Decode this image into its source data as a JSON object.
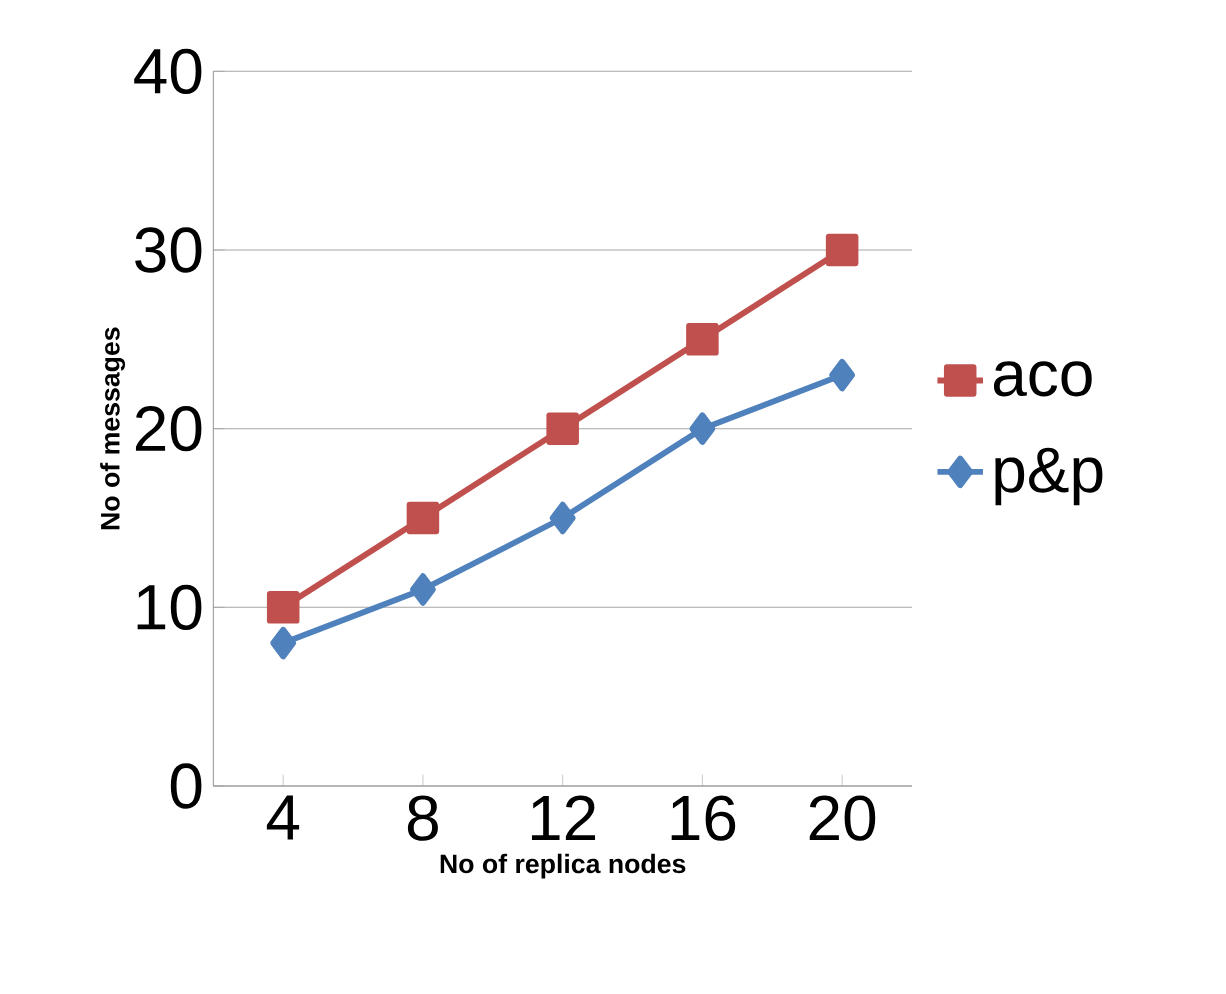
{
  "chart_data": {
    "type": "line",
    "xlabel": "No of replica nodes",
    "ylabel": "No of messages",
    "categories": [
      "4",
      "8",
      "12",
      "16",
      "20"
    ],
    "series": [
      {
        "name": "aco",
        "color": "#c0504d",
        "marker": "square",
        "values": [
          10,
          15,
          20,
          25,
          30
        ]
      },
      {
        "name": "p&p",
        "color": "#4f81bd",
        "marker": "diamond",
        "values": [
          8,
          11,
          15,
          20,
          23
        ]
      }
    ],
    "ylim": [
      0,
      40
    ],
    "yticks": [
      0,
      10,
      20,
      30,
      40
    ],
    "grid": "y",
    "legend": "right",
    "line_style": "solid"
  }
}
